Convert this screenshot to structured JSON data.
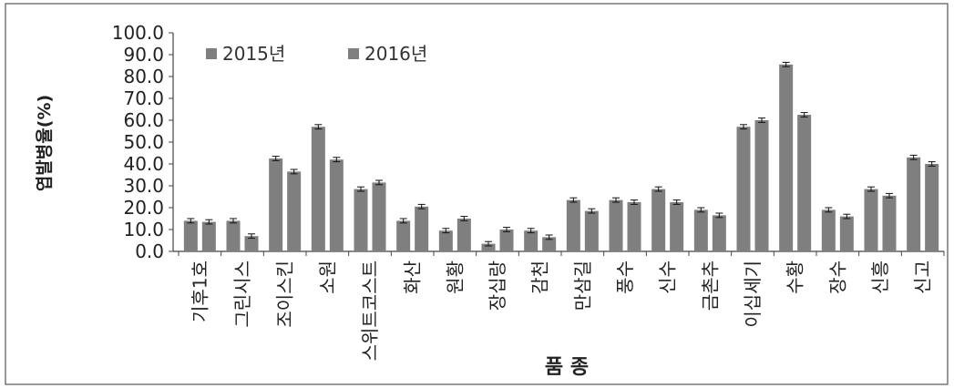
{
  "chart_data": {
    "type": "bar",
    "ylabel": "엽발병율(%)",
    "xlabel": "품 종",
    "ylim": [
      0,
      100
    ],
    "ytick_step": 10,
    "ytick_labels": [
      "0.0",
      "10.0",
      "20.0",
      "30.0",
      "40.0",
      "50.0",
      "60.0",
      "70.0",
      "80.0",
      "90.0",
      "100.0"
    ],
    "grid": false,
    "legend_position": "top-left",
    "categories": [
      "기후1호",
      "그린시스",
      "조이스킨",
      "소원",
      "스위트코스트",
      "화산",
      "원황",
      "장십랑",
      "감천",
      "만삼길",
      "풍수",
      "신수",
      "금촌추",
      "이십세기",
      "수황",
      "장수",
      "신흥",
      "신고"
    ],
    "series": [
      {
        "name": "2015년",
        "color": "#7f7f7f",
        "values": [
          14,
          14,
          42.5,
          57,
          28.5,
          14,
          9.5,
          3.5,
          9.5,
          23.5,
          23.5,
          28.5,
          19,
          57,
          85.5,
          19,
          28.5,
          43
        ],
        "errors": [
          1,
          1,
          1,
          1,
          1,
          1,
          1,
          1,
          1,
          1,
          1,
          1,
          1,
          1,
          1,
          1,
          1,
          1
        ]
      },
      {
        "name": "2016년",
        "color": "#7f7f7f",
        "values": [
          13.5,
          7,
          36.5,
          42,
          31.5,
          20.5,
          15,
          10,
          6.5,
          18.5,
          22.5,
          22.5,
          16.5,
          60,
          62.5,
          16,
          25.5,
          40
        ],
        "errors": [
          1,
          1,
          1,
          1,
          1,
          1,
          1,
          1,
          1,
          1,
          1,
          1,
          1,
          1,
          1,
          1,
          1,
          1
        ]
      }
    ]
  }
}
